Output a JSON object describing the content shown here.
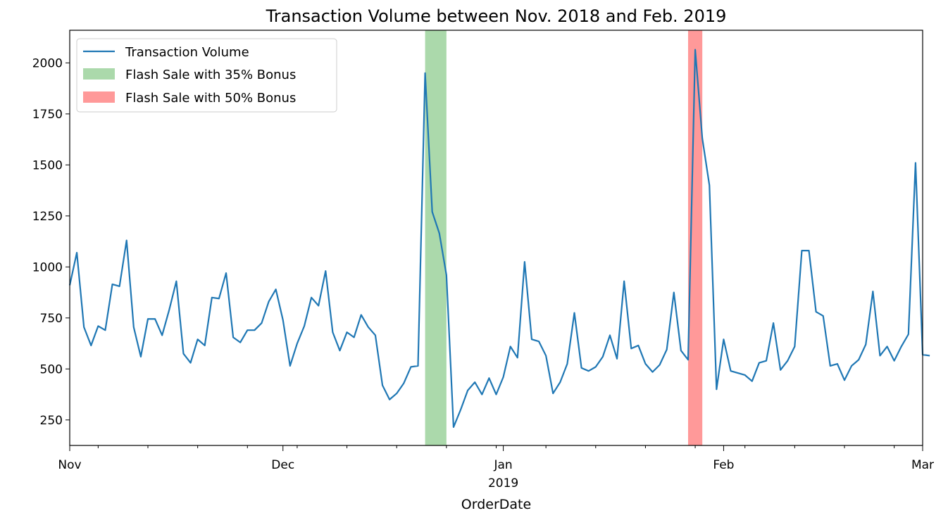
{
  "chart_data": {
    "type": "line",
    "title": "Transaction Volume between Nov. 2018 and Feb. 2019",
    "xlabel": "OrderDate",
    "ylabel": "",
    "x_tick_labels": [
      {
        "date": "2018-11-01",
        "label": "Nov"
      },
      {
        "date": "2018-12-01",
        "label": "Dec"
      },
      {
        "date": "2019-01-01",
        "label": "Jan",
        "sublabel": "2019"
      },
      {
        "date": "2019-02-01",
        "label": "Feb"
      },
      {
        "date": "2019-03-01",
        "label": "Mar"
      }
    ],
    "xlim": [
      "2018-11-01",
      "2019-03-01"
    ],
    "ylim": [
      125,
      2160
    ],
    "y_ticks": [
      250,
      500,
      750,
      1000,
      1250,
      1500,
      1750,
      2000
    ],
    "grid": false,
    "legend": "top-left",
    "colors": {
      "line": "#1f77b4",
      "span_35": "#2ca02c",
      "span_50": "#ff0000"
    },
    "series": [
      {
        "name": "Transaction Volume",
        "start_date": "2018-11-01",
        "values": [
          910,
          1070,
          705,
          615,
          710,
          690,
          915,
          905,
          1130,
          705,
          560,
          745,
          745,
          665,
          790,
          930,
          575,
          530,
          645,
          615,
          850,
          845,
          970,
          655,
          630,
          690,
          690,
          725,
          830,
          890,
          740,
          515,
          625,
          710,
          850,
          810,
          980,
          680,
          590,
          680,
          655,
          765,
          705,
          665,
          420,
          350,
          380,
          430,
          510,
          515,
          1950,
          1270,
          1165,
          960,
          215,
          300,
          395,
          435,
          375,
          455,
          375,
          460,
          610,
          555,
          1025,
          645,
          635,
          565,
          380,
          435,
          525,
          775,
          505,
          490,
          510,
          560,
          665,
          550,
          930,
          600,
          615,
          525,
          485,
          520,
          595,
          875,
          590,
          545,
          2065,
          1630,
          1400,
          400,
          645,
          490,
          480,
          470,
          440,
          530,
          540,
          725,
          495,
          540,
          610,
          1080,
          1080,
          780,
          760,
          515,
          525,
          445,
          515,
          545,
          620,
          880,
          565,
          610,
          540,
          610,
          670,
          1510,
          570,
          565
        ]
      }
    ],
    "spans": [
      {
        "name": "Flash Sale with 35% Bonus",
        "start": "2018-12-21",
        "end": "2018-12-24"
      },
      {
        "name": "Flash Sale with 50% Bonus",
        "start": "2019-01-27",
        "end": "2019-01-29"
      }
    ]
  }
}
